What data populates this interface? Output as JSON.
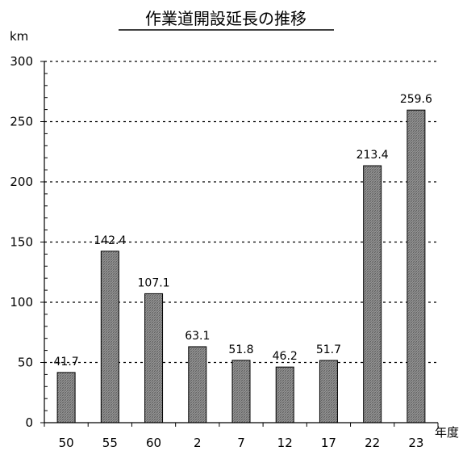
{
  "chart_data": {
    "type": "bar",
    "title": "作業道開設延長の推移",
    "ylabel": "km",
    "xlabel": "年度",
    "categories": [
      "50",
      "55",
      "60",
      "2",
      "7",
      "12",
      "17",
      "22",
      "23"
    ],
    "values": [
      41.7,
      142.4,
      107.1,
      63.1,
      51.8,
      46.2,
      51.7,
      213.4,
      259.6
    ],
    "data_labels": [
      "41.7",
      "142.4",
      "107.1",
      "63.1",
      "51.8",
      "46.2",
      "51.7",
      "213.4",
      "259.6"
    ],
    "ylim": [
      0,
      300
    ],
    "yticks": [
      0,
      50,
      100,
      150,
      200,
      250,
      300
    ],
    "grid": "dotted horizontal",
    "bar_fill": "crosshatch gray",
    "colors": {
      "bar": "#9a9a9a",
      "text": "#000000",
      "grid": "#000000"
    }
  }
}
